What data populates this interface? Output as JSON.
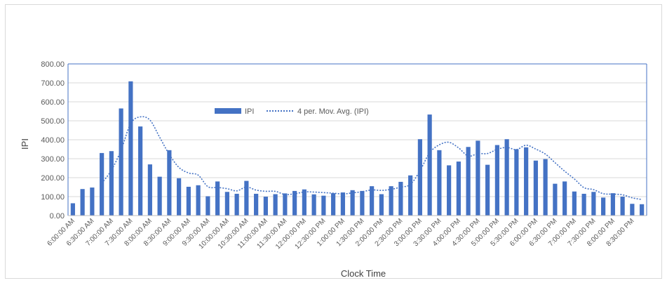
{
  "chart_data": {
    "type": "bar",
    "title": "",
    "xlabel": "Clock Time",
    "ylabel": "IPI",
    "ylim": [
      0,
      800
    ],
    "yticks": [
      "0.00",
      "100.00",
      "200.00",
      "300.00",
      "400.00",
      "500.00",
      "600.00",
      "700.00",
      "800.00"
    ],
    "grid": true,
    "legend_position": "top-center",
    "x_tick_labels": [
      "6:00:00 AM",
      "6:30:00 AM",
      "7:00:00 AM",
      "7:30:00 AM",
      "8:00:00 AM",
      "8:30:00 AM",
      "9:00:00 AM",
      "9:30:00 AM",
      "10:00:00 AM",
      "10:30:00 AM",
      "11:00:00 AM",
      "11:30:00 AM",
      "12:00:00 PM",
      "12:30:00 PM",
      "1:00:00 PM",
      "1:30:00 PM",
      "2:00:00 PM",
      "2:30:00 PM",
      "3:00:00 PM",
      "3:30:00 PM",
      "4:00:00 PM",
      "4:30:00 PM",
      "5:00:00 PM",
      "5:30:00 PM",
      "6:00:00 PM",
      "6:30:00 PM",
      "7:00:00 PM",
      "7:30:00 PM",
      "8:00:00 PM",
      "8:30:00 PM"
    ],
    "series": [
      {
        "name": "IPI",
        "kind": "bar",
        "color": "#4472c4",
        "values": [
          65,
          140,
          148,
          330,
          340,
          565,
          708,
          470,
          270,
          205,
          345,
          197,
          152,
          160,
          102,
          180,
          125,
          115,
          183,
          115,
          100,
          113,
          117,
          130,
          138,
          112,
          105,
          118,
          122,
          134,
          130,
          155,
          113,
          155,
          178,
          212,
          403,
          533,
          345,
          265,
          285,
          362,
          395,
          268,
          372,
          403,
          350,
          360,
          290,
          298,
          168,
          180,
          127,
          115,
          125,
          95,
          118,
          100,
          62,
          60
        ]
      },
      {
        "name": "4 per. Mov. Avg. (IPI)",
        "kind": "line",
        "style": "dotted",
        "color": "#4472c4",
        "moving_average_period": 4
      }
    ]
  }
}
